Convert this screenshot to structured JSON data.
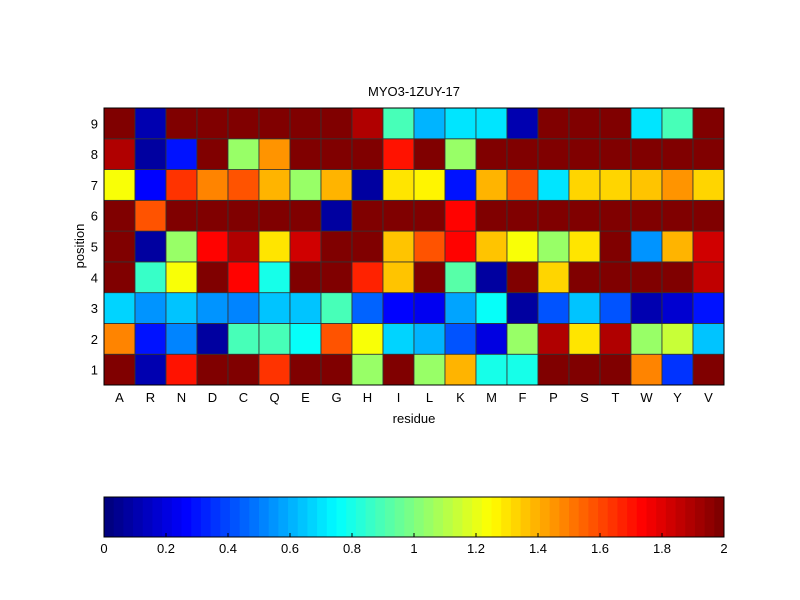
{
  "chart_data": {
    "type": "heatmap",
    "title": "MYO3-1ZUY-17",
    "xlabel": "residue",
    "ylabel": "position",
    "x_categories": [
      "A",
      "R",
      "N",
      "D",
      "C",
      "Q",
      "E",
      "G",
      "H",
      "I",
      "L",
      "K",
      "M",
      "F",
      "P",
      "S",
      "T",
      "W",
      "Y",
      "V"
    ],
    "y_categories": [
      "1",
      "2",
      "3",
      "4",
      "5",
      "6",
      "7",
      "8",
      "9"
    ],
    "colormap": "jet",
    "clim": [
      0,
      2
    ],
    "colorbar": {
      "placement": "bottom",
      "ticks": [
        "0",
        "0.2",
        "0.4",
        "0.6",
        "0.8",
        "1",
        "1.2",
        "1.4",
        "1.6",
        "1.8",
        "2"
      ]
    },
    "values": [
      [
        2,
        0.08,
        1.7,
        2,
        2,
        1.65,
        2,
        2,
        1.05,
        2,
        1.05,
        1.4,
        0.8,
        0.8,
        2,
        2,
        2,
        1.5,
        0.35,
        2
      ],
      [
        1.5,
        0.3,
        0.52,
        0.05,
        0.88,
        0.88,
        0.75,
        1.6,
        1.25,
        0.68,
        0.6,
        0.4,
        0.2,
        1.05,
        1.9,
        1.3,
        1.9,
        1.05,
        1.15,
        0.65
      ],
      [
        0.68,
        0.55,
        0.62,
        0.55,
        0.52,
        0.65,
        0.62,
        0.9,
        0.45,
        0.25,
        0.22,
        0.58,
        0.75,
        0.05,
        0.4,
        0.62,
        0.4,
        0.08,
        0.15,
        0.3
      ],
      [
        2,
        0.85,
        1.25,
        2,
        1.75,
        0.8,
        2,
        2,
        1.68,
        1.38,
        2,
        0.92,
        0.05,
        2,
        1.32,
        2,
        2,
        2,
        2,
        1.88
      ],
      [
        2,
        0.05,
        1.05,
        1.75,
        1.9,
        1.3,
        1.85,
        2,
        2,
        1.38,
        1.6,
        1.75,
        1.38,
        1.25,
        1.05,
        1.3,
        2,
        0.55,
        1.4,
        1.85
      ],
      [
        2,
        1.6,
        2,
        2,
        2,
        2,
        2,
        0.05,
        2,
        2,
        2,
        1.75,
        2,
        2,
        2,
        2,
        2,
        2,
        2,
        2
      ],
      [
        1.25,
        0.25,
        1.65,
        1.5,
        1.6,
        1.4,
        1.05,
        1.4,
        0.05,
        1.3,
        1.27,
        0.3,
        1.4,
        1.6,
        0.7,
        1.33,
        1.33,
        1.38,
        1.45,
        1.33
      ],
      [
        1.9,
        0.05,
        0.3,
        2,
        1.05,
        1.45,
        2,
        2,
        2,
        1.7,
        2,
        1.05,
        2,
        2,
        2,
        2,
        2,
        2,
        2,
        2
      ],
      [
        2,
        0.1,
        2,
        2,
        2,
        2,
        2,
        2,
        1.9,
        0.9,
        0.6,
        0.7,
        0.7,
        0.1,
        2,
        2,
        2,
        0.7,
        0.9,
        2
      ]
    ]
  }
}
